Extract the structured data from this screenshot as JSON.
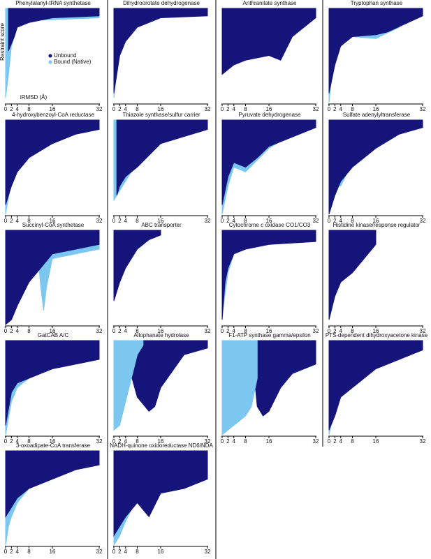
{
  "chart_data": [
    {
      "type": "area",
      "title": "Phenylalanyl-tRNA synthetase",
      "x_label": "iRMSD (Å)",
      "y_label": "Restraint score",
      "legend": "center",
      "xlim": [
        0,
        32
      ],
      "ylim": [
        0,
        1
      ],
      "xticks": [
        0,
        2,
        4,
        8,
        16,
        32
      ],
      "series": [
        {
          "name": "Unbound",
          "color": "#14147a",
          "x": [
            1,
            3,
            4,
            8,
            16,
            32
          ],
          "values": [
            0.55,
            0.7,
            0.8,
            0.85,
            0.9,
            0.92
          ]
        },
        {
          "name": "Bound (Native)",
          "color": "#7cc7ef",
          "x": [
            0,
            1,
            2,
            4,
            8,
            32
          ],
          "values": [
            0.05,
            0.3,
            0.6,
            0.8,
            0.87,
            0.9
          ]
        }
      ]
    },
    {
      "type": "area",
      "title": "Dihydroorotate dehydrogenase",
      "xlim": [
        0,
        32
      ],
      "ylim": [
        0,
        1
      ],
      "xticks": [
        0,
        2,
        4,
        8,
        16,
        32
      ],
      "series": [
        {
          "color": "#14147a",
          "x": [
            0,
            1,
            2,
            4,
            8,
            16,
            32
          ],
          "values": [
            0.1,
            0.3,
            0.5,
            0.65,
            0.8,
            0.9,
            0.92
          ]
        },
        {
          "color": "#7cc7ef",
          "x": [
            0,
            1,
            2,
            4,
            8
          ],
          "values": [
            0.05,
            0.35,
            0.6,
            0.75,
            0.85
          ]
        }
      ]
    },
    {
      "type": "area",
      "title": "Anthranilate synthase",
      "xlim": [
        0,
        32
      ],
      "ylim": [
        0,
        1
      ],
      "xticks": [
        0,
        2,
        4,
        8,
        16,
        32
      ],
      "series": [
        {
          "color": "#14147a",
          "x": [
            0,
            4,
            8,
            16,
            20,
            24,
            32
          ],
          "values": [
            0.3,
            0.4,
            0.45,
            0.5,
            0.45,
            0.7,
            0.9
          ]
        },
        {
          "color": "#7cc7ef",
          "x": [
            0,
            2,
            4,
            8,
            16,
            32
          ],
          "values": [
            0.4,
            0.5,
            0.6,
            0.7,
            0.8,
            0.9
          ]
        }
      ]
    },
    {
      "type": "area",
      "title": "Tryptophan synthase",
      "xlim": [
        0,
        32
      ],
      "ylim": [
        0,
        1
      ],
      "xticks": [
        0,
        2,
        4,
        8,
        16,
        32
      ],
      "series": [
        {
          "color": "#14147a",
          "x": [
            0,
            2,
            4,
            8,
            16,
            20,
            32
          ],
          "values": [
            0.1,
            0.4,
            0.6,
            0.7,
            0.72,
            0.75,
            0.92
          ]
        },
        {
          "color": "#7cc7ef",
          "x": [
            0,
            1,
            2,
            4,
            8,
            16,
            24
          ],
          "values": [
            0.0,
            0.3,
            0.55,
            0.65,
            0.7,
            0.68,
            0.8
          ]
        }
      ]
    },
    {
      "type": "area",
      "title": "4-hydroxybenzoyl-CoA reductase",
      "xlim": [
        0,
        32
      ],
      "ylim": [
        0,
        1
      ],
      "xticks": [
        0,
        2,
        4,
        8,
        16,
        32
      ],
      "series": [
        {
          "color": "#14147a",
          "x": [
            0,
            2,
            4,
            8,
            16,
            24,
            32
          ],
          "values": [
            0.1,
            0.3,
            0.45,
            0.6,
            0.75,
            0.85,
            0.9
          ]
        },
        {
          "color": "#7cc7ef",
          "x": [
            0,
            2,
            4,
            8,
            16
          ],
          "values": [
            0.0,
            0.35,
            0.5,
            0.65,
            0.8
          ]
        }
      ]
    },
    {
      "type": "area",
      "title": "Thiazole synthase/sulfur carrier",
      "xlim": [
        0,
        32
      ],
      "ylim": [
        0,
        1
      ],
      "xticks": [
        0,
        2,
        4,
        8,
        16,
        32
      ],
      "series": [
        {
          "color": "#14147a",
          "x": [
            1,
            2,
            4,
            8,
            16,
            32
          ],
          "values": [
            0.2,
            0.3,
            0.4,
            0.5,
            0.75,
            0.9
          ]
        },
        {
          "color": "#7cc7ef",
          "x": [
            0,
            1,
            2,
            4,
            8,
            16,
            24
          ],
          "values": [
            0.15,
            0.2,
            0.25,
            0.35,
            0.55,
            0.8,
            0.9
          ]
        }
      ]
    },
    {
      "type": "area",
      "title": "Pyruvate dehydrogenase",
      "xlim": [
        0,
        32
      ],
      "ylim": [
        0,
        1
      ],
      "xticks": [
        0,
        2,
        4,
        8,
        16,
        32
      ],
      "series": [
        {
          "color": "#14147a",
          "x": [
            0,
            2,
            4,
            8,
            12,
            16,
            32
          ],
          "values": [
            0.1,
            0.4,
            0.55,
            0.5,
            0.6,
            0.72,
            0.92
          ]
        },
        {
          "color": "#7cc7ef",
          "x": [
            0,
            2,
            4,
            8,
            16,
            24
          ],
          "values": [
            0.0,
            0.3,
            0.5,
            0.45,
            0.7,
            0.85
          ]
        }
      ]
    },
    {
      "type": "area",
      "title": "Sulfate adenylyltransferase",
      "xlim": [
        0,
        32
      ],
      "ylim": [
        0,
        1
      ],
      "xticks": [
        0,
        2,
        4,
        8,
        16,
        32
      ],
      "series": [
        {
          "color": "#14147a",
          "x": [
            0,
            2,
            4,
            8,
            16,
            24,
            32
          ],
          "values": [
            0.0,
            0.2,
            0.35,
            0.5,
            0.7,
            0.85,
            0.92
          ]
        },
        {
          "color": "#7cc7ef",
          "x": [
            0,
            1,
            2,
            4,
            8
          ],
          "values": [
            0.05,
            0.2,
            0.3,
            0.3,
            0.55
          ]
        }
      ]
    },
    {
      "type": "area",
      "title": "Succinyl-CoA synthetase",
      "xlim": [
        0,
        32
      ],
      "ylim": [
        0,
        1
      ],
      "xticks": [
        0,
        2,
        4,
        8,
        16,
        32
      ],
      "series": [
        {
          "color": "#14147a",
          "x": [
            0,
            2,
            4,
            8,
            12,
            16,
            32
          ],
          "values": [
            0.0,
            0.05,
            0.2,
            0.45,
            0.6,
            0.75,
            0.85
          ]
        },
        {
          "color": "#7cc7ef",
          "x": [
            11,
            12,
            13,
            14,
            16,
            24,
            32
          ],
          "values": [
            0.75,
            0.4,
            0.15,
            0.4,
            0.7,
            0.75,
            0.8
          ]
        }
      ]
    },
    {
      "type": "area",
      "title": "ABC transporter",
      "xlim": [
        0,
        32
      ],
      "ylim": [
        0,
        1
      ],
      "xticks": [
        0,
        2,
        4,
        8,
        16,
        32
      ],
      "series": [
        {
          "color": "#14147a",
          "x": [
            0,
            2,
            4,
            8,
            12,
            16
          ],
          "values": [
            0.25,
            0.45,
            0.6,
            0.8,
            0.9,
            0.95
          ]
        },
        {
          "color": "#7cc7ef",
          "x": [
            0,
            2,
            4,
            8
          ],
          "values": [
            0.3,
            0.5,
            0.65,
            0.85
          ]
        }
      ]
    },
    {
      "type": "area",
      "title": "Cytochrome c oxidase CO1/CO3",
      "xlim": [
        0,
        32
      ],
      "ylim": [
        0,
        1
      ],
      "xticks": [
        0,
        2,
        4,
        8,
        16,
        32
      ],
      "series": [
        {
          "color": "#14147a",
          "x": [
            0,
            1,
            2,
            4,
            8,
            16,
            32
          ],
          "values": [
            0.05,
            0.45,
            0.6,
            0.75,
            0.8,
            0.85,
            0.88
          ]
        },
        {
          "color": "#7cc7ef",
          "x": [
            0,
            2,
            4,
            8,
            16,
            32
          ],
          "values": [
            0.1,
            0.55,
            0.75,
            0.8,
            0.85,
            0.9
          ]
        }
      ]
    },
    {
      "type": "area",
      "title": "Histidine kinase/response regulator",
      "xlim": [
        0,
        32
      ],
      "ylim": [
        0,
        1
      ],
      "xticks": [
        0,
        2,
        4,
        8,
        16,
        32
      ],
      "series": [
        {
          "color": "#14147a",
          "x": [
            0,
            2,
            4,
            8,
            12,
            16
          ],
          "values": [
            0.05,
            0.3,
            0.45,
            0.55,
            0.7,
            0.85
          ]
        },
        {
          "color": "#7cc7ef",
          "x": [
            2,
            4,
            8,
            12,
            16
          ],
          "values": [
            0.8,
            0.85,
            0.88,
            0.9,
            0.9
          ]
        }
      ]
    },
    {
      "type": "area",
      "title": "GatCAB A/C",
      "xlim": [
        0,
        32
      ],
      "ylim": [
        0,
        1
      ],
      "xticks": [
        0,
        2,
        4,
        8,
        16,
        32
      ],
      "series": [
        {
          "color": "#14147a",
          "x": [
            0,
            2,
            4,
            8,
            16,
            24,
            32
          ],
          "values": [
            0.1,
            0.45,
            0.55,
            0.6,
            0.7,
            0.75,
            0.8
          ]
        },
        {
          "color": "#7cc7ef",
          "x": [
            0,
            2,
            4,
            8,
            16,
            24,
            32
          ],
          "values": [
            0.0,
            0.35,
            0.5,
            0.6,
            0.75,
            0.8,
            0.8
          ]
        }
      ]
    },
    {
      "type": "area",
      "title": "Allophanate hydrolase",
      "xlim": [
        0,
        32
      ],
      "ylim": [
        0,
        1
      ],
      "xticks": [
        0,
        2,
        4,
        8,
        16,
        32
      ],
      "series": [
        {
          "color": "#7cc7ef",
          "x": [
            0,
            2,
            4,
            6,
            8,
            10
          ],
          "values": [
            0.05,
            0.1,
            0.35,
            0.6,
            0.85,
            0.95
          ]
        },
        {
          "color": "#14147a",
          "x": [
            4,
            8,
            12,
            14,
            16,
            24,
            32
          ],
          "values": [
            0.85,
            0.4,
            0.25,
            0.3,
            0.5,
            0.85,
            0.92
          ]
        }
      ]
    },
    {
      "type": "area",
      "title": "F1-ATP synthase gamma/epsilon",
      "xlim": [
        0,
        32
      ],
      "ylim": [
        0,
        1
      ],
      "xticks": [
        0,
        2,
        4,
        8,
        16,
        32
      ],
      "series": [
        {
          "color": "#7cc7ef",
          "x": [
            0,
            2,
            4,
            8,
            10,
            12
          ],
          "values": [
            0.0,
            0.05,
            0.1,
            0.2,
            0.3,
            0.6
          ]
        },
        {
          "color": "#14147a",
          "x": [
            10,
            12,
            14,
            16,
            20,
            24,
            32
          ],
          "values": [
            0.95,
            0.3,
            0.2,
            0.25,
            0.5,
            0.65,
            0.75
          ]
        }
      ]
    },
    {
      "type": "area",
      "title": "PTS-dependent dihydroxyacetone kinase",
      "xlim": [
        0,
        32
      ],
      "ylim": [
        0,
        1
      ],
      "xticks": [
        0,
        2,
        4,
        8,
        16,
        32
      ],
      "series": [
        {
          "color": "#14147a",
          "x": [
            0,
            2,
            4,
            8,
            16,
            24,
            32
          ],
          "values": [
            0.05,
            0.2,
            0.4,
            0.5,
            0.7,
            0.8,
            0.9
          ]
        },
        {
          "color": "#7cc7ef",
          "x": [
            0,
            2,
            4,
            8,
            16,
            32
          ],
          "values": [
            0.0,
            0.3,
            0.45,
            0.55,
            0.75,
            0.9
          ]
        }
      ]
    },
    {
      "type": "area",
      "title": "3-oxoadipate-CoA transferase",
      "xlim": [
        0,
        32
      ],
      "ylim": [
        0,
        1
      ],
      "xticks": [
        0,
        2,
        4,
        8,
        16,
        32
      ],
      "series": [
        {
          "color": "#14147a",
          "x": [
            0,
            2,
            4,
            8,
            16,
            24,
            32
          ],
          "values": [
            0.3,
            0.4,
            0.5,
            0.6,
            0.7,
            0.8,
            0.85
          ]
        },
        {
          "color": "#7cc7ef",
          "x": [
            0,
            1,
            2,
            4,
            8,
            16
          ],
          "values": [
            0.0,
            0.2,
            0.3,
            0.45,
            0.6,
            0.75
          ]
        }
      ]
    },
    {
      "type": "area",
      "title": "NADH-quinone oxidoreductase ND6/NDA",
      "xlim": [
        0,
        32
      ],
      "ylim": [
        0,
        1
      ],
      "xticks": [
        0,
        2,
        4,
        8,
        16,
        32
      ],
      "series": [
        {
          "color": "#14147a",
          "x": [
            0,
            2,
            4,
            8,
            12,
            16,
            24,
            32
          ],
          "values": [
            0.1,
            0.2,
            0.3,
            0.45,
            0.3,
            0.55,
            0.6,
            0.7
          ]
        },
        {
          "color": "#7cc7ef",
          "x": [
            0,
            2,
            4,
            8,
            16
          ],
          "values": [
            0.0,
            0.1,
            0.25,
            0.5,
            0.6
          ]
        }
      ]
    }
  ]
}
